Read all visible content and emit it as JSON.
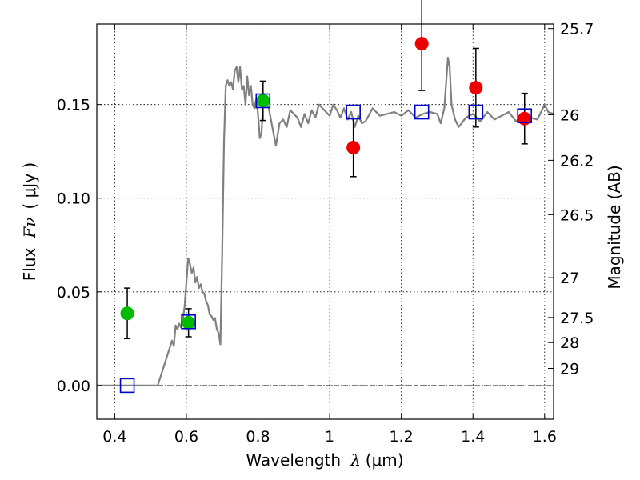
{
  "chart_data": {
    "type": "scatter",
    "xlabel": "Wavelength",
    "xlabel_symbol": "λ",
    "xlabel_unit": "(μm)",
    "ylabel": "Flux",
    "ylabel_symbol": "Fν",
    "ylabel_unit": "( μJy )",
    "right_ylabel": "Magnitude (AB)",
    "xlim": [
      0.35,
      1.625
    ],
    "ylim": [
      -0.018,
      0.193
    ],
    "grid": true,
    "x_ticks": [
      {
        "value": 0.4,
        "label": "0.4"
      },
      {
        "value": 0.6,
        "label": "0.6"
      },
      {
        "value": 0.8,
        "label": "0.8"
      },
      {
        "value": 1.0,
        "label": "1"
      },
      {
        "value": 1.2,
        "label": "1.2"
      },
      {
        "value": 1.4,
        "label": "1.4"
      },
      {
        "value": 1.6,
        "label": "1.6"
      }
    ],
    "y_ticks": [
      {
        "value": 0.0,
        "label": "0.00"
      },
      {
        "value": 0.05,
        "label": "0.05"
      },
      {
        "value": 0.1,
        "label": "0.10"
      },
      {
        "value": 0.15,
        "label": "0.15"
      }
    ],
    "mag_ticks": [
      {
        "value": 25.7,
        "label": "25.7"
      },
      {
        "value": 26.0,
        "label": "26"
      },
      {
        "value": 26.2,
        "label": "26.2"
      },
      {
        "value": 26.5,
        "label": "26.5"
      },
      {
        "value": 27.0,
        "label": "27"
      },
      {
        "value": 27.5,
        "label": "27.5"
      },
      {
        "value": 28.0,
        "label": "28"
      },
      {
        "value": 29.0,
        "label": "29"
      }
    ],
    "zero_line": 0.0,
    "colors": {
      "model": "#808080",
      "green": "#00bb00",
      "red": "#ee0000",
      "model_photometry": "#0000cc",
      "errorbar": "#000000"
    },
    "model_spectrum": {
      "x": [
        0.35,
        0.4,
        0.45,
        0.5,
        0.52,
        0.54,
        0.55,
        0.56,
        0.565,
        0.57,
        0.575,
        0.58,
        0.585,
        0.59,
        0.595,
        0.6,
        0.605,
        0.61,
        0.615,
        0.62,
        0.625,
        0.63,
        0.635,
        0.64,
        0.645,
        0.65,
        0.655,
        0.66,
        0.665,
        0.67,
        0.675,
        0.68,
        0.685,
        0.69,
        0.695,
        0.7,
        0.705,
        0.71,
        0.715,
        0.72,
        0.725,
        0.73,
        0.735,
        0.74,
        0.745,
        0.75,
        0.755,
        0.76,
        0.765,
        0.77,
        0.775,
        0.78,
        0.785,
        0.79,
        0.795,
        0.8,
        0.805,
        0.81,
        0.815,
        0.82,
        0.83,
        0.84,
        0.85,
        0.86,
        0.87,
        0.88,
        0.89,
        0.9,
        0.91,
        0.92,
        0.93,
        0.94,
        0.95,
        0.96,
        0.97,
        0.98,
        0.99,
        1.0,
        1.01,
        1.02,
        1.03,
        1.04,
        1.05,
        1.06,
        1.07,
        1.08,
        1.09,
        1.1,
        1.12,
        1.14,
        1.16,
        1.18,
        1.2,
        1.22,
        1.24,
        1.26,
        1.28,
        1.3,
        1.31,
        1.32,
        1.33,
        1.335,
        1.34,
        1.35,
        1.36,
        1.38,
        1.4,
        1.42,
        1.44,
        1.46,
        1.48,
        1.5,
        1.52,
        1.54,
        1.56,
        1.58,
        1.59,
        1.6,
        1.61,
        1.625
      ],
      "y": [
        0.0,
        0.0,
        0.0,
        0.0,
        0.0,
        0.012,
        0.018,
        0.024,
        0.021,
        0.032,
        0.03,
        0.033,
        0.031,
        0.035,
        0.042,
        0.055,
        0.068,
        0.065,
        0.06,
        0.063,
        0.055,
        0.058,
        0.052,
        0.054,
        0.05,
        0.049,
        0.045,
        0.043,
        0.038,
        0.037,
        0.035,
        0.036,
        0.03,
        0.028,
        0.022,
        0.07,
        0.13,
        0.16,
        0.163,
        0.16,
        0.162,
        0.158,
        0.168,
        0.17,
        0.162,
        0.17,
        0.158,
        0.16,
        0.15,
        0.165,
        0.155,
        0.16,
        0.15,
        0.148,
        0.153,
        0.145,
        0.132,
        0.135,
        0.155,
        0.152,
        0.148,
        0.138,
        0.128,
        0.14,
        0.142,
        0.138,
        0.147,
        0.145,
        0.143,
        0.138,
        0.145,
        0.14,
        0.147,
        0.143,
        0.15,
        0.148,
        0.146,
        0.144,
        0.15,
        0.147,
        0.143,
        0.148,
        0.142,
        0.146,
        0.138,
        0.144,
        0.14,
        0.141,
        0.148,
        0.144,
        0.145,
        0.146,
        0.144,
        0.147,
        0.143,
        0.145,
        0.146,
        0.145,
        0.14,
        0.148,
        0.175,
        0.17,
        0.15,
        0.142,
        0.138,
        0.143,
        0.145,
        0.141,
        0.146,
        0.142,
        0.144,
        0.146,
        0.141,
        0.145,
        0.143,
        0.142,
        0.146,
        0.15,
        0.146,
        0.145
      ]
    },
    "series": [
      {
        "marker": "circle",
        "color": "green",
        "points": [
          {
            "x": 0.435,
            "y": 0.0385,
            "err": 0.0135
          },
          {
            "x": 0.606,
            "y": 0.0335,
            "err": 0.0075
          },
          {
            "x": 0.814,
            "y": 0.152,
            "err": 0.0105
          }
        ]
      },
      {
        "marker": "circle",
        "color": "red",
        "points": [
          {
            "x": 1.066,
            "y": 0.127,
            "err": 0.0155
          },
          {
            "x": 1.257,
            "y": 0.1825,
            "err": 0.025
          },
          {
            "x": 1.408,
            "y": 0.159,
            "err": 0.021
          },
          {
            "x": 1.544,
            "y": 0.1425,
            "err": 0.0135
          }
        ]
      },
      {
        "marker": "square-open",
        "color": "model_photometry",
        "points": [
          {
            "x": 0.435,
            "y": 0.0
          },
          {
            "x": 0.606,
            "y": 0.034
          },
          {
            "x": 0.814,
            "y": 0.152
          },
          {
            "x": 1.066,
            "y": 0.146
          },
          {
            "x": 1.257,
            "y": 0.146
          },
          {
            "x": 1.408,
            "y": 0.146
          },
          {
            "x": 1.544,
            "y": 0.144
          }
        ]
      }
    ]
  }
}
